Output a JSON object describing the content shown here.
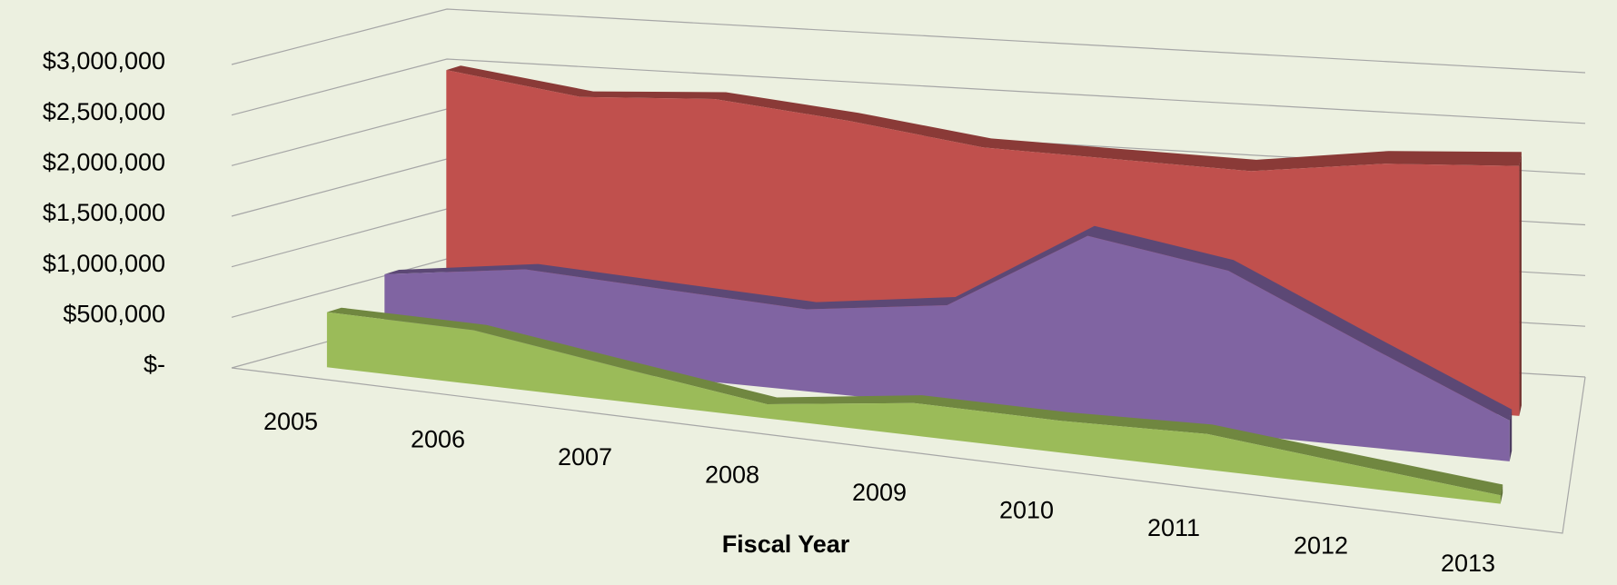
{
  "chart_data": {
    "type": "area3d",
    "x_label": "Fiscal Year",
    "categories": [
      "2005",
      "2006",
      "2007",
      "2008",
      "2009",
      "2010",
      "2011",
      "2012",
      "2013"
    ],
    "series": [
      {
        "color": "#c0504d",
        "values": [
          2600000,
          2450000,
          2550000,
          2450000,
          2300000,
          2300000,
          2300000,
          2500000,
          2600000
        ]
      },
      {
        "color": "#8064a2",
        "values": [
          750000,
          950000,
          900000,
          850000,
          1050000,
          1950000,
          1750000,
          1100000,
          450000
        ]
      },
      {
        "color": "#9bbb59",
        "values": [
          550000,
          550000,
          350000,
          150000,
          350000,
          350000,
          400000,
          250000,
          100000
        ]
      }
    ],
    "ylim": [
      0,
      3000000
    ],
    "yticks": [
      {
        "value": 0,
        "label": "$-"
      },
      {
        "value": 500000,
        "label": "$500,000"
      },
      {
        "value": 1000000,
        "label": "$1,000,000"
      },
      {
        "value": 1500000,
        "label": "$1,500,000"
      },
      {
        "value": 2000000,
        "label": "$2,000,000"
      },
      {
        "value": 2500000,
        "label": "$2,500,000"
      },
      {
        "value": 3000000,
        "label": "$3,000,000"
      }
    ],
    "grid": true
  }
}
